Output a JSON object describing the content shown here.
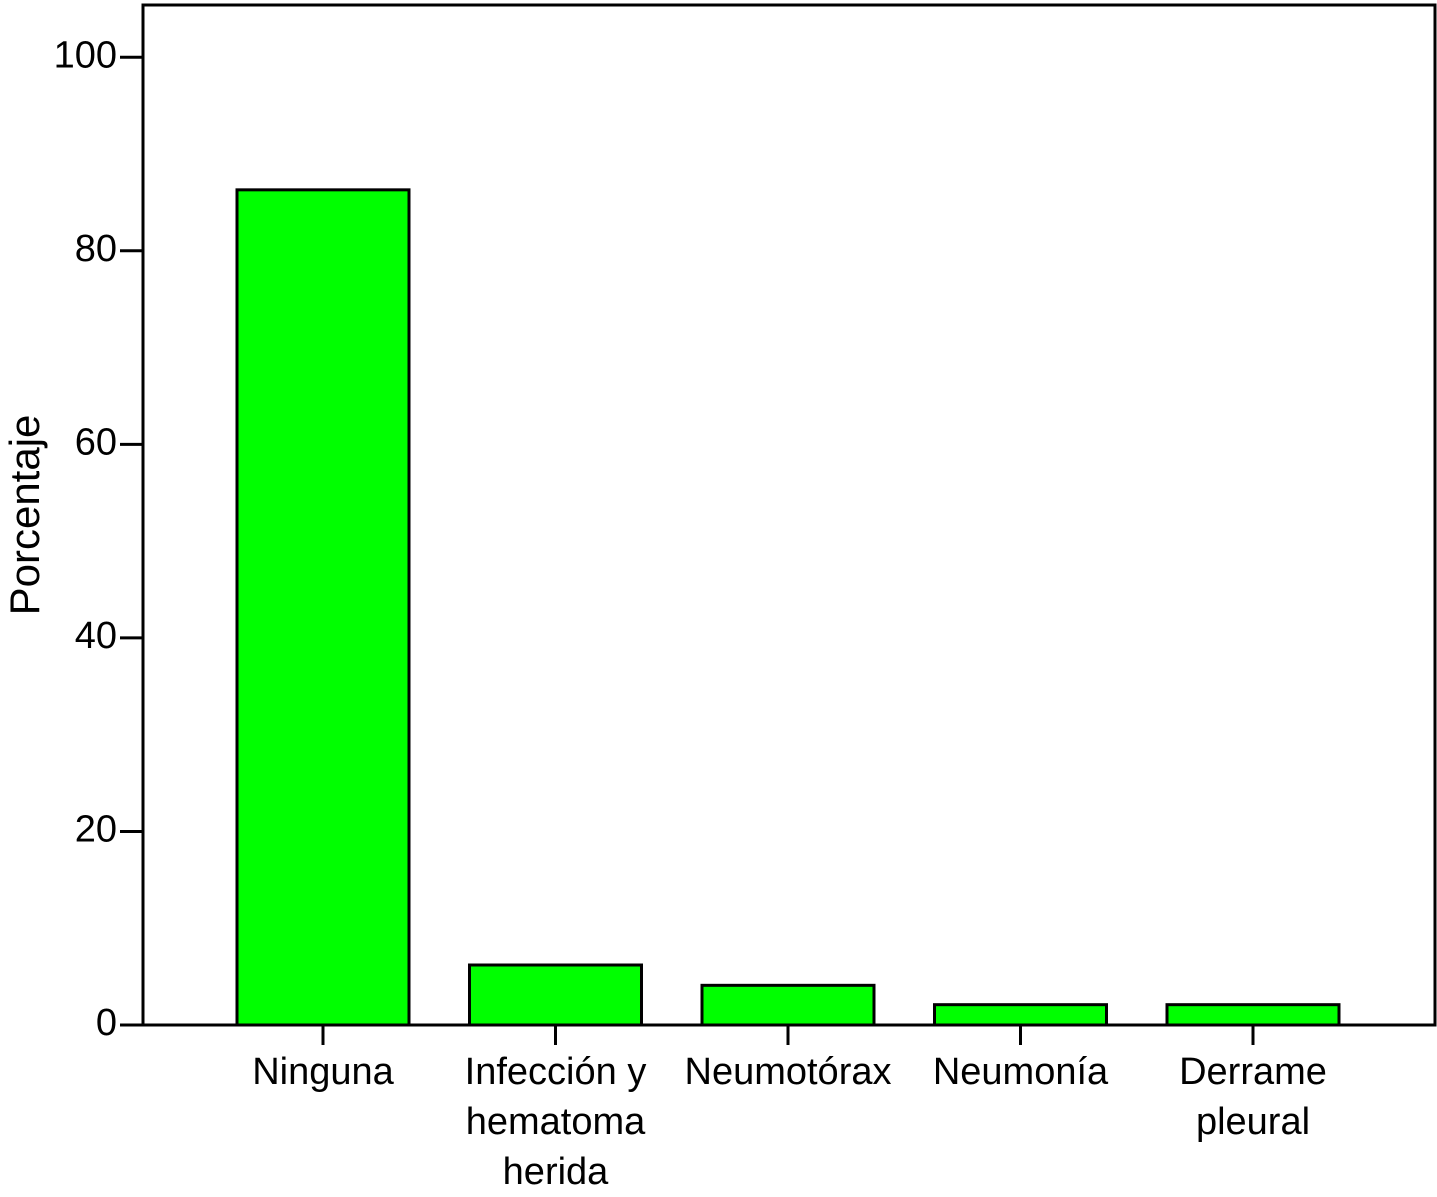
{
  "chart_data": {
    "type": "bar",
    "y_label": "Porcentaje",
    "categories": [
      "Ninguna",
      "Infección y\nhematoma\nherida",
      "Neumotórax",
      "Neumonía",
      "Derrame\npleural"
    ],
    "values": [
      86.3,
      6.2,
      4.1,
      2.1,
      2.1
    ],
    "color": "#00ff00",
    "ylim": [
      0,
      105.4
    ],
    "yticks": [
      0,
      20,
      40,
      60,
      80,
      100
    ],
    "grid": false
  }
}
